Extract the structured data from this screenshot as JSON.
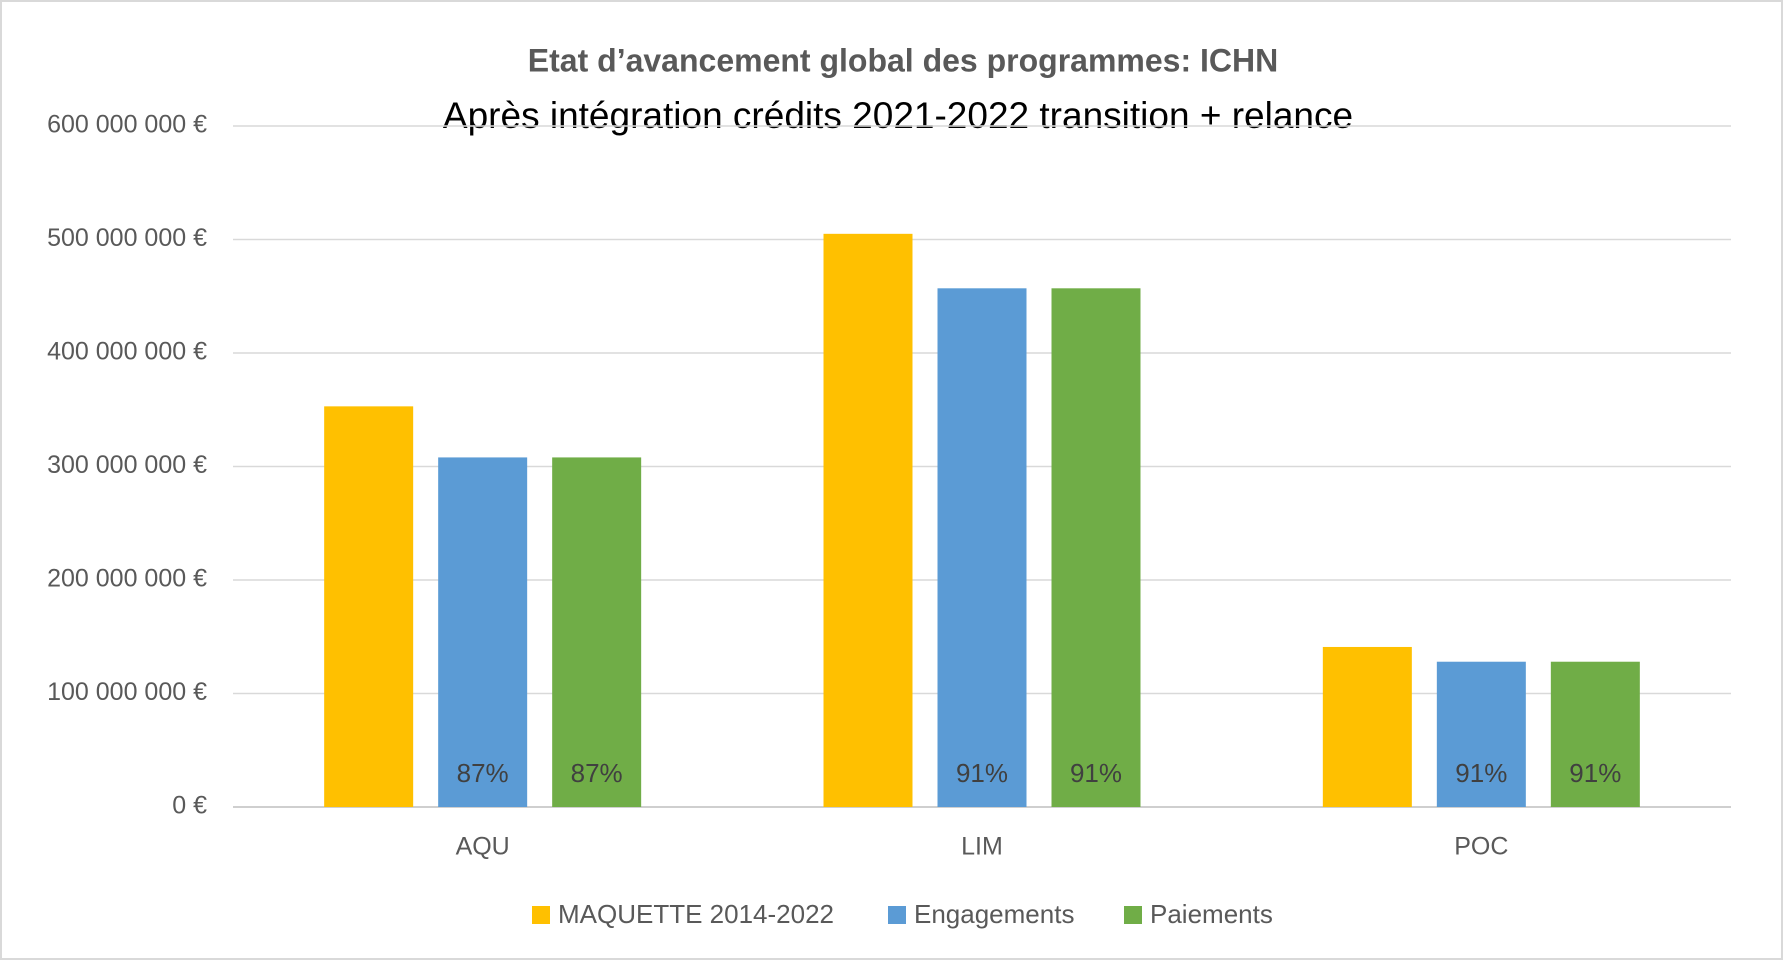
{
  "chart_data": {
    "type": "bar",
    "title": "Etat d’avancement global des programmes: ICHN",
    "subtitle": "Après intégration crédits 2021-2022 transition + relance",
    "categories": [
      "AQU",
      "LIM",
      "POC"
    ],
    "series": [
      {
        "name": "MAQUETTE 2014-2022",
        "color": "#ffc000",
        "values": [
          353000000,
          505000000,
          141000000
        ]
      },
      {
        "name": "Engagements",
        "color": "#5b9bd5",
        "values": [
          308000000,
          457000000,
          128000000
        ],
        "data_labels": [
          "87%",
          "91%",
          "91%"
        ]
      },
      {
        "name": "Paiements",
        "color": "#70ad47",
        "values": [
          308000000,
          457000000,
          128000000
        ],
        "data_labels": [
          "87%",
          "91%",
          "91%"
        ]
      }
    ],
    "ylim": [
      0,
      600000000
    ],
    "yticks": [
      {
        "value": 0,
        "label": "0 €"
      },
      {
        "value": 100000000,
        "label": "100 000 000 €"
      },
      {
        "value": 200000000,
        "label": "200 000 000 €"
      },
      {
        "value": 300000000,
        "label": "300 000 000 €"
      },
      {
        "value": 400000000,
        "label": "400 000 000 €"
      },
      {
        "value": 500000000,
        "label": "500 000 000 €"
      },
      {
        "value": 600000000,
        "label": "600 000 000 €"
      }
    ],
    "grid": true,
    "legend": "bottom"
  }
}
